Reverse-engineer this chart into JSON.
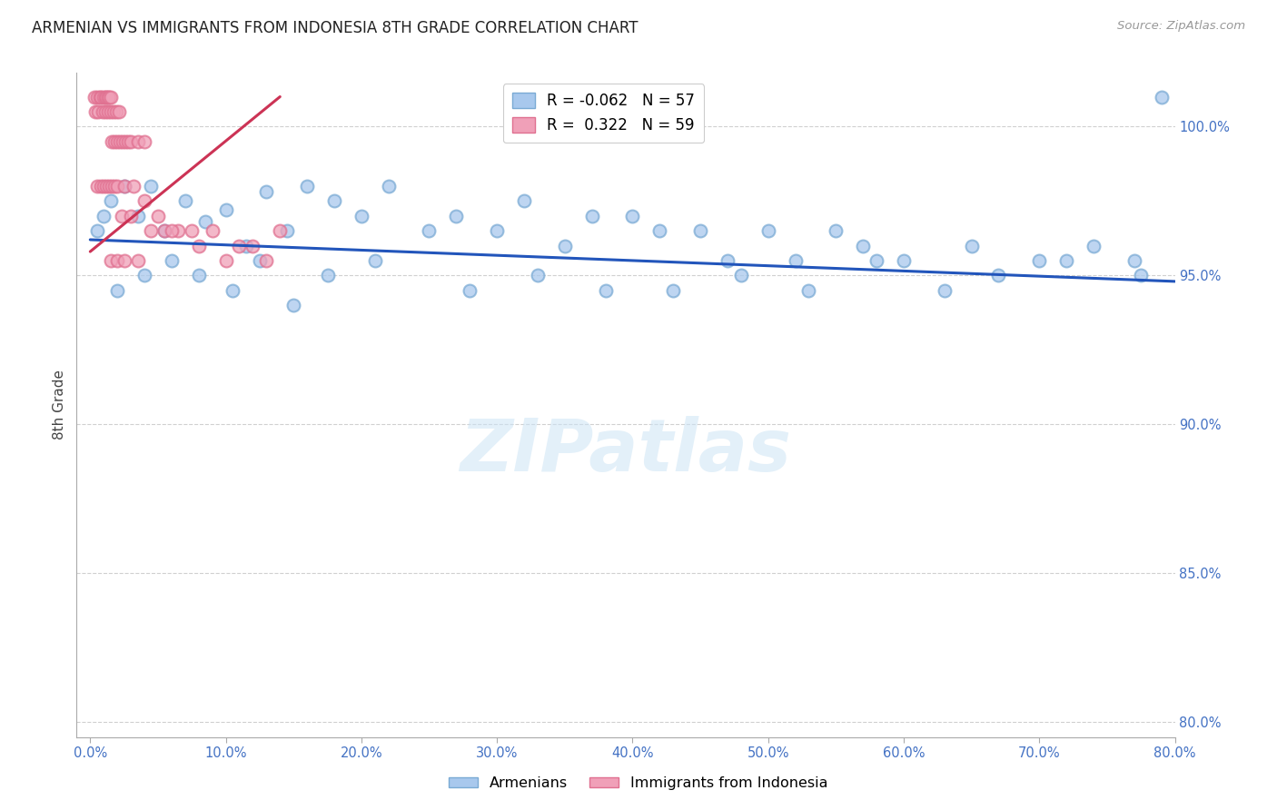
{
  "title": "ARMENIAN VS IMMIGRANTS FROM INDONESIA 8TH GRADE CORRELATION CHART",
  "source": "Source: ZipAtlas.com",
  "ylabel": "8th Grade",
  "x_ticks": [
    0.0,
    10.0,
    20.0,
    30.0,
    40.0,
    50.0,
    60.0,
    70.0,
    80.0
  ],
  "x_tick_labels": [
    "0.0%",
    "10.0%",
    "20.0%",
    "30.0%",
    "40.0%",
    "50.0%",
    "60.0%",
    "70.0%",
    "80.0%"
  ],
  "y_ticks": [
    80.0,
    85.0,
    90.0,
    95.0,
    100.0
  ],
  "y_tick_labels": [
    "80.0%",
    "85.0%",
    "90.0%",
    "95.0%",
    "100.0%"
  ],
  "xlim": [
    -1.0,
    80.0
  ],
  "ylim": [
    79.5,
    101.8
  ],
  "blue_color": "#a8c8ed",
  "pink_color": "#f0a0b8",
  "blue_edge_color": "#7aaad4",
  "pink_edge_color": "#e07090",
  "blue_line_color": "#2255bb",
  "pink_line_color": "#cc3355",
  "legend_armenians": "Armenians",
  "legend_indonesia": "Immigrants from Indonesia",
  "watermark": "ZIPatlas",
  "title_color": "#222222",
  "source_color": "#999999",
  "axis_color": "#4472c4",
  "grid_color": "#d0d0d0",
  "blue_scatter_x": [
    0.5,
    1.0,
    1.5,
    2.5,
    3.5,
    4.5,
    5.5,
    7.0,
    8.5,
    10.0,
    11.5,
    13.0,
    14.5,
    16.0,
    18.0,
    20.0,
    22.0,
    25.0,
    27.0,
    30.0,
    32.0,
    35.0,
    37.0,
    40.0,
    42.0,
    45.0,
    47.0,
    50.0,
    52.0,
    55.0,
    57.0,
    60.0,
    65.0,
    70.0,
    74.0,
    77.0,
    2.0,
    4.0,
    6.0,
    8.0,
    10.5,
    12.5,
    15.0,
    17.5,
    21.0,
    28.0,
    33.0,
    38.0,
    43.0,
    48.0,
    53.0,
    58.0,
    63.0,
    67.0,
    72.0,
    77.5,
    79.0
  ],
  "blue_scatter_y": [
    96.5,
    97.0,
    97.5,
    98.0,
    97.0,
    98.0,
    96.5,
    97.5,
    96.8,
    97.2,
    96.0,
    97.8,
    96.5,
    98.0,
    97.5,
    97.0,
    98.0,
    96.5,
    97.0,
    96.5,
    97.5,
    96.0,
    97.0,
    97.0,
    96.5,
    96.5,
    95.5,
    96.5,
    95.5,
    96.5,
    96.0,
    95.5,
    96.0,
    95.5,
    96.0,
    95.5,
    94.5,
    95.0,
    95.5,
    95.0,
    94.5,
    95.5,
    94.0,
    95.0,
    95.5,
    94.5,
    95.0,
    94.5,
    94.5,
    95.0,
    94.5,
    95.5,
    94.5,
    95.0,
    95.5,
    95.0,
    101.0
  ],
  "pink_scatter_x": [
    0.3,
    0.5,
    0.7,
    0.8,
    1.0,
    1.1,
    1.2,
    1.3,
    1.4,
    1.5,
    0.4,
    0.6,
    0.9,
    1.1,
    1.3,
    1.5,
    1.7,
    1.9,
    2.1,
    1.6,
    1.8,
    2.0,
    2.2,
    2.4,
    2.6,
    2.8,
    3.0,
    3.5,
    4.0,
    0.5,
    0.8,
    1.0,
    1.2,
    1.4,
    1.6,
    1.8,
    2.0,
    2.5,
    3.2,
    4.5,
    5.5,
    6.5,
    7.5,
    9.0,
    11.0,
    13.0,
    2.3,
    3.0,
    4.0,
    5.0,
    6.0,
    8.0,
    10.0,
    12.0,
    14.0,
    1.5,
    2.0,
    2.5,
    3.5
  ],
  "pink_scatter_y": [
    101.0,
    101.0,
    101.0,
    101.0,
    101.0,
    101.0,
    101.0,
    101.0,
    101.0,
    101.0,
    100.5,
    100.5,
    100.5,
    100.5,
    100.5,
    100.5,
    100.5,
    100.5,
    100.5,
    99.5,
    99.5,
    99.5,
    99.5,
    99.5,
    99.5,
    99.5,
    99.5,
    99.5,
    99.5,
    98.0,
    98.0,
    98.0,
    98.0,
    98.0,
    98.0,
    98.0,
    98.0,
    98.0,
    98.0,
    96.5,
    96.5,
    96.5,
    96.5,
    96.5,
    96.0,
    95.5,
    97.0,
    97.0,
    97.5,
    97.0,
    96.5,
    96.0,
    95.5,
    96.0,
    96.5,
    95.5,
    95.5,
    95.5,
    95.5
  ],
  "blue_trend_x": [
    0.0,
    80.0
  ],
  "blue_trend_y": [
    96.2,
    94.8
  ],
  "pink_trend_x": [
    0.0,
    14.0
  ],
  "pink_trend_y": [
    95.8,
    101.0
  ],
  "marker_size": 100,
  "marker_linewidth": 1.5
}
